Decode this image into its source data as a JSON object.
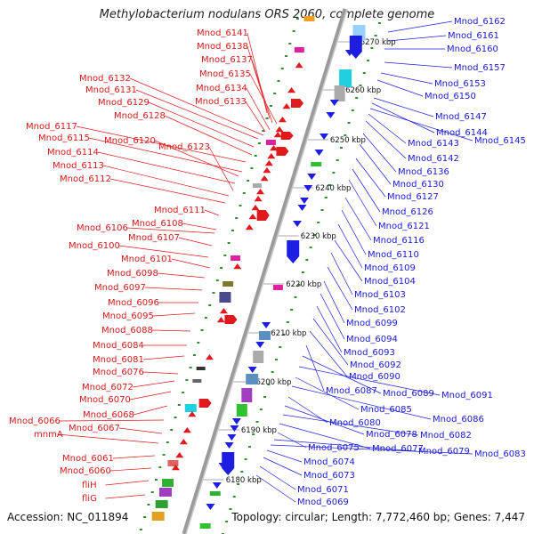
{
  "title": "Methylobacterium nodulans ORS 2060, complete genome",
  "accession_line": "Accession: NC_011894",
  "topology_line": "Topology: circular; Length: 7,772,460 bp; Genes: 7,447",
  "colors": {
    "left_genes": "#e0191c",
    "right_genes": "#1e1ee0",
    "backbone": "#9a9a9a",
    "tick": "#2f8f2f"
  },
  "kbp_markers": [
    "6270 kbp",
    "6260 kbp",
    "6250 kbp",
    "6240 kbp",
    "6230 kbp",
    "6220 kbp",
    "6210 kbp",
    "6200 kbp",
    "6190 kbp",
    "6180 kbp"
  ],
  "left_labels": [
    "Mnod_6141",
    "Mnod_6138",
    "Mnod_6137",
    "Mnod_6135",
    "Mnod_6134",
    "Mnod_6133",
    "Mnod_6132",
    "Mnod_6131",
    "Mnod_6129",
    "Mnod_6128",
    "Mnod_6117",
    "Mnod_6115",
    "Mnod_6120",
    "Mnod_6114",
    "Mnod_6123",
    "Mnod_6113",
    "Mnod_6112",
    "Mnod_6111",
    "Mnod_6108",
    "Mnod_6106",
    "Mnod_6107",
    "Mnod_6100",
    "Mnod_6101",
    "Mnod_6098",
    "Mnod_6097",
    "Mnod_6096",
    "Mnod_6095",
    "Mnod_6088",
    "Mnod_6084",
    "Mnod_6081",
    "Mnod_6076",
    "Mnod_6072",
    "Mnod_6070",
    "Mnod_6068",
    "Mnod_6066",
    "Mnod_6067",
    "mnmA",
    "Mnod_6061",
    "Mnod_6060",
    "fliH",
    "fliG"
  ],
  "right_labels": [
    "Mnod_6162",
    "Mnod_6161",
    "Mnod_6160",
    "Mnod_6157",
    "Mnod_6153",
    "Mnod_6150",
    "Mnod_6147",
    "Mnod_6144",
    "Mnod_6145",
    "Mnod_6143",
    "Mnod_6142",
    "Mnod_6136",
    "Mnod_6130",
    "Mnod_6127",
    "Mnod_6126",
    "Mnod_6121",
    "Mnod_6116",
    "Mnod_6110",
    "Mnod_6109",
    "Mnod_6104",
    "Mnod_6103",
    "Mnod_6102",
    "Mnod_6099",
    "Mnod_6094",
    "Mnod_6093",
    "Mnod_6092",
    "Mnod_6090",
    "Mnod_6087",
    "Mnod_6089",
    "Mnod_6091",
    "Mnod_6085",
    "Mnod_6086",
    "Mnod_6080",
    "Mnod_6078",
    "Mnod_6082",
    "Mnod_6077",
    "Mnod_6075",
    "Mnod_6079",
    "Mnod_6083",
    "Mnod_6074",
    "Mnod_6073",
    "Mnod_6071",
    "Mnod_6069"
  ]
}
